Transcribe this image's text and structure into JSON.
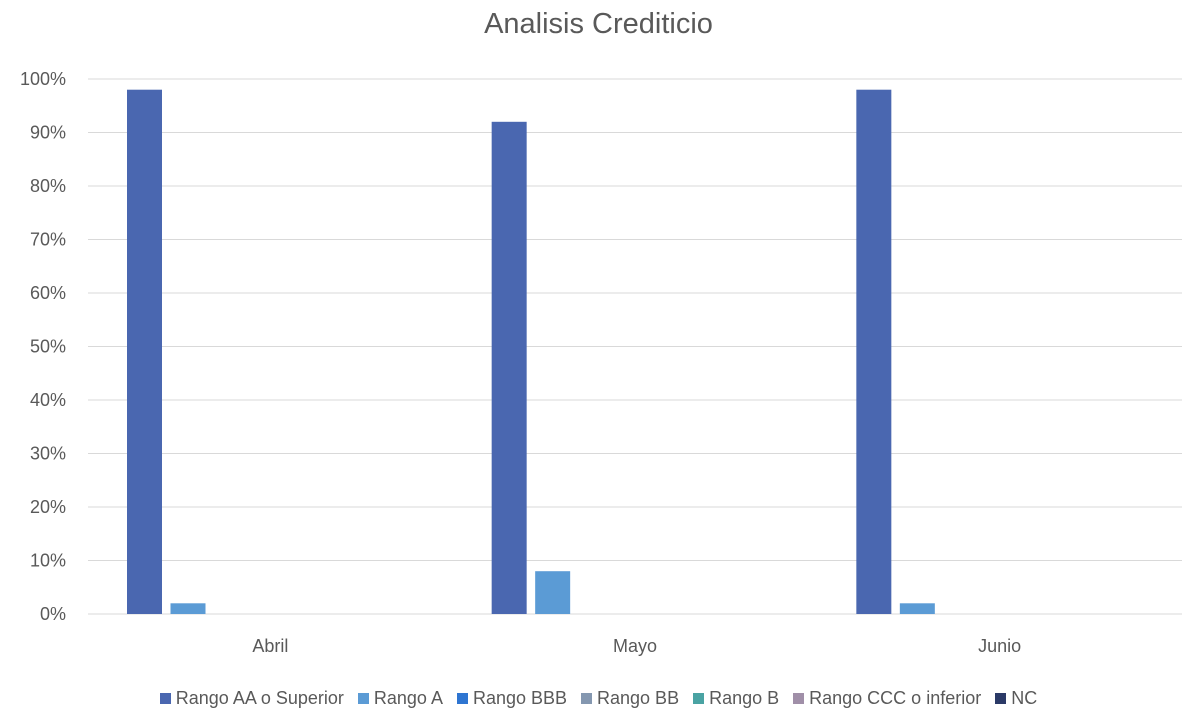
{
  "chart_data": {
    "type": "bar",
    "title": "Analisis Crediticio",
    "xlabel": "",
    "ylabel": "",
    "categories": [
      "Abril",
      "Mayo",
      "Junio"
    ],
    "ylim": [
      0,
      100
    ],
    "y_ticks": [
      "0%",
      "10%",
      "20%",
      "30%",
      "40%",
      "50%",
      "60%",
      "70%",
      "80%",
      "90%",
      "100%"
    ],
    "grid": true,
    "legend_position": "bottom",
    "series": [
      {
        "name": "Rango AA o Superior",
        "color": "#4a67b0",
        "values": [
          98,
          92,
          98
        ]
      },
      {
        "name": "Rango A",
        "color": "#5b9bd5",
        "values": [
          2,
          8,
          2
        ]
      },
      {
        "name": "Rango BBB",
        "color": "#2e75d1",
        "values": [
          0,
          0,
          0
        ]
      },
      {
        "name": "Rango BB",
        "color": "#8497b0",
        "values": [
          0,
          0,
          0
        ]
      },
      {
        "name": "Rango B",
        "color": "#4aa3a3",
        "values": [
          0,
          0,
          0
        ]
      },
      {
        "name": "Rango CCC o inferior",
        "color": "#a08fa8",
        "values": [
          0,
          0,
          0
        ]
      },
      {
        "name": "NC",
        "color": "#2b3a67",
        "values": [
          0,
          0,
          0
        ]
      }
    ]
  }
}
